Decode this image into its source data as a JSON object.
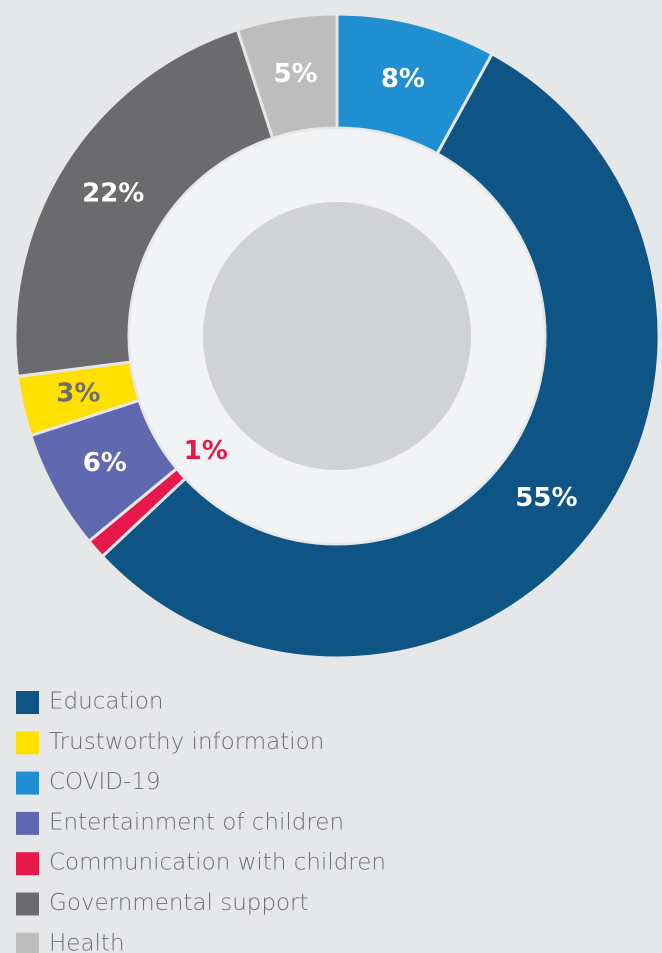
{
  "chart_data": {
    "type": "pie",
    "categories": [
      "Education",
      "Trustworthy information",
      "COVID-19",
      "Entertainment of children",
      "Communication with children",
      "Governmental support",
      "Health"
    ],
    "values": [
      55,
      3,
      8,
      6,
      1,
      22,
      5
    ],
    "value_labels": [
      "55%",
      "3%",
      "8%",
      "6%",
      "1%",
      "22%",
      "5%"
    ],
    "colors": [
      "#0e5585",
      "#ffe000",
      "#1f8fd1",
      "#6068b0",
      "#e8184a",
      "#6b6b6d",
      "#bdbdbd"
    ]
  }
}
